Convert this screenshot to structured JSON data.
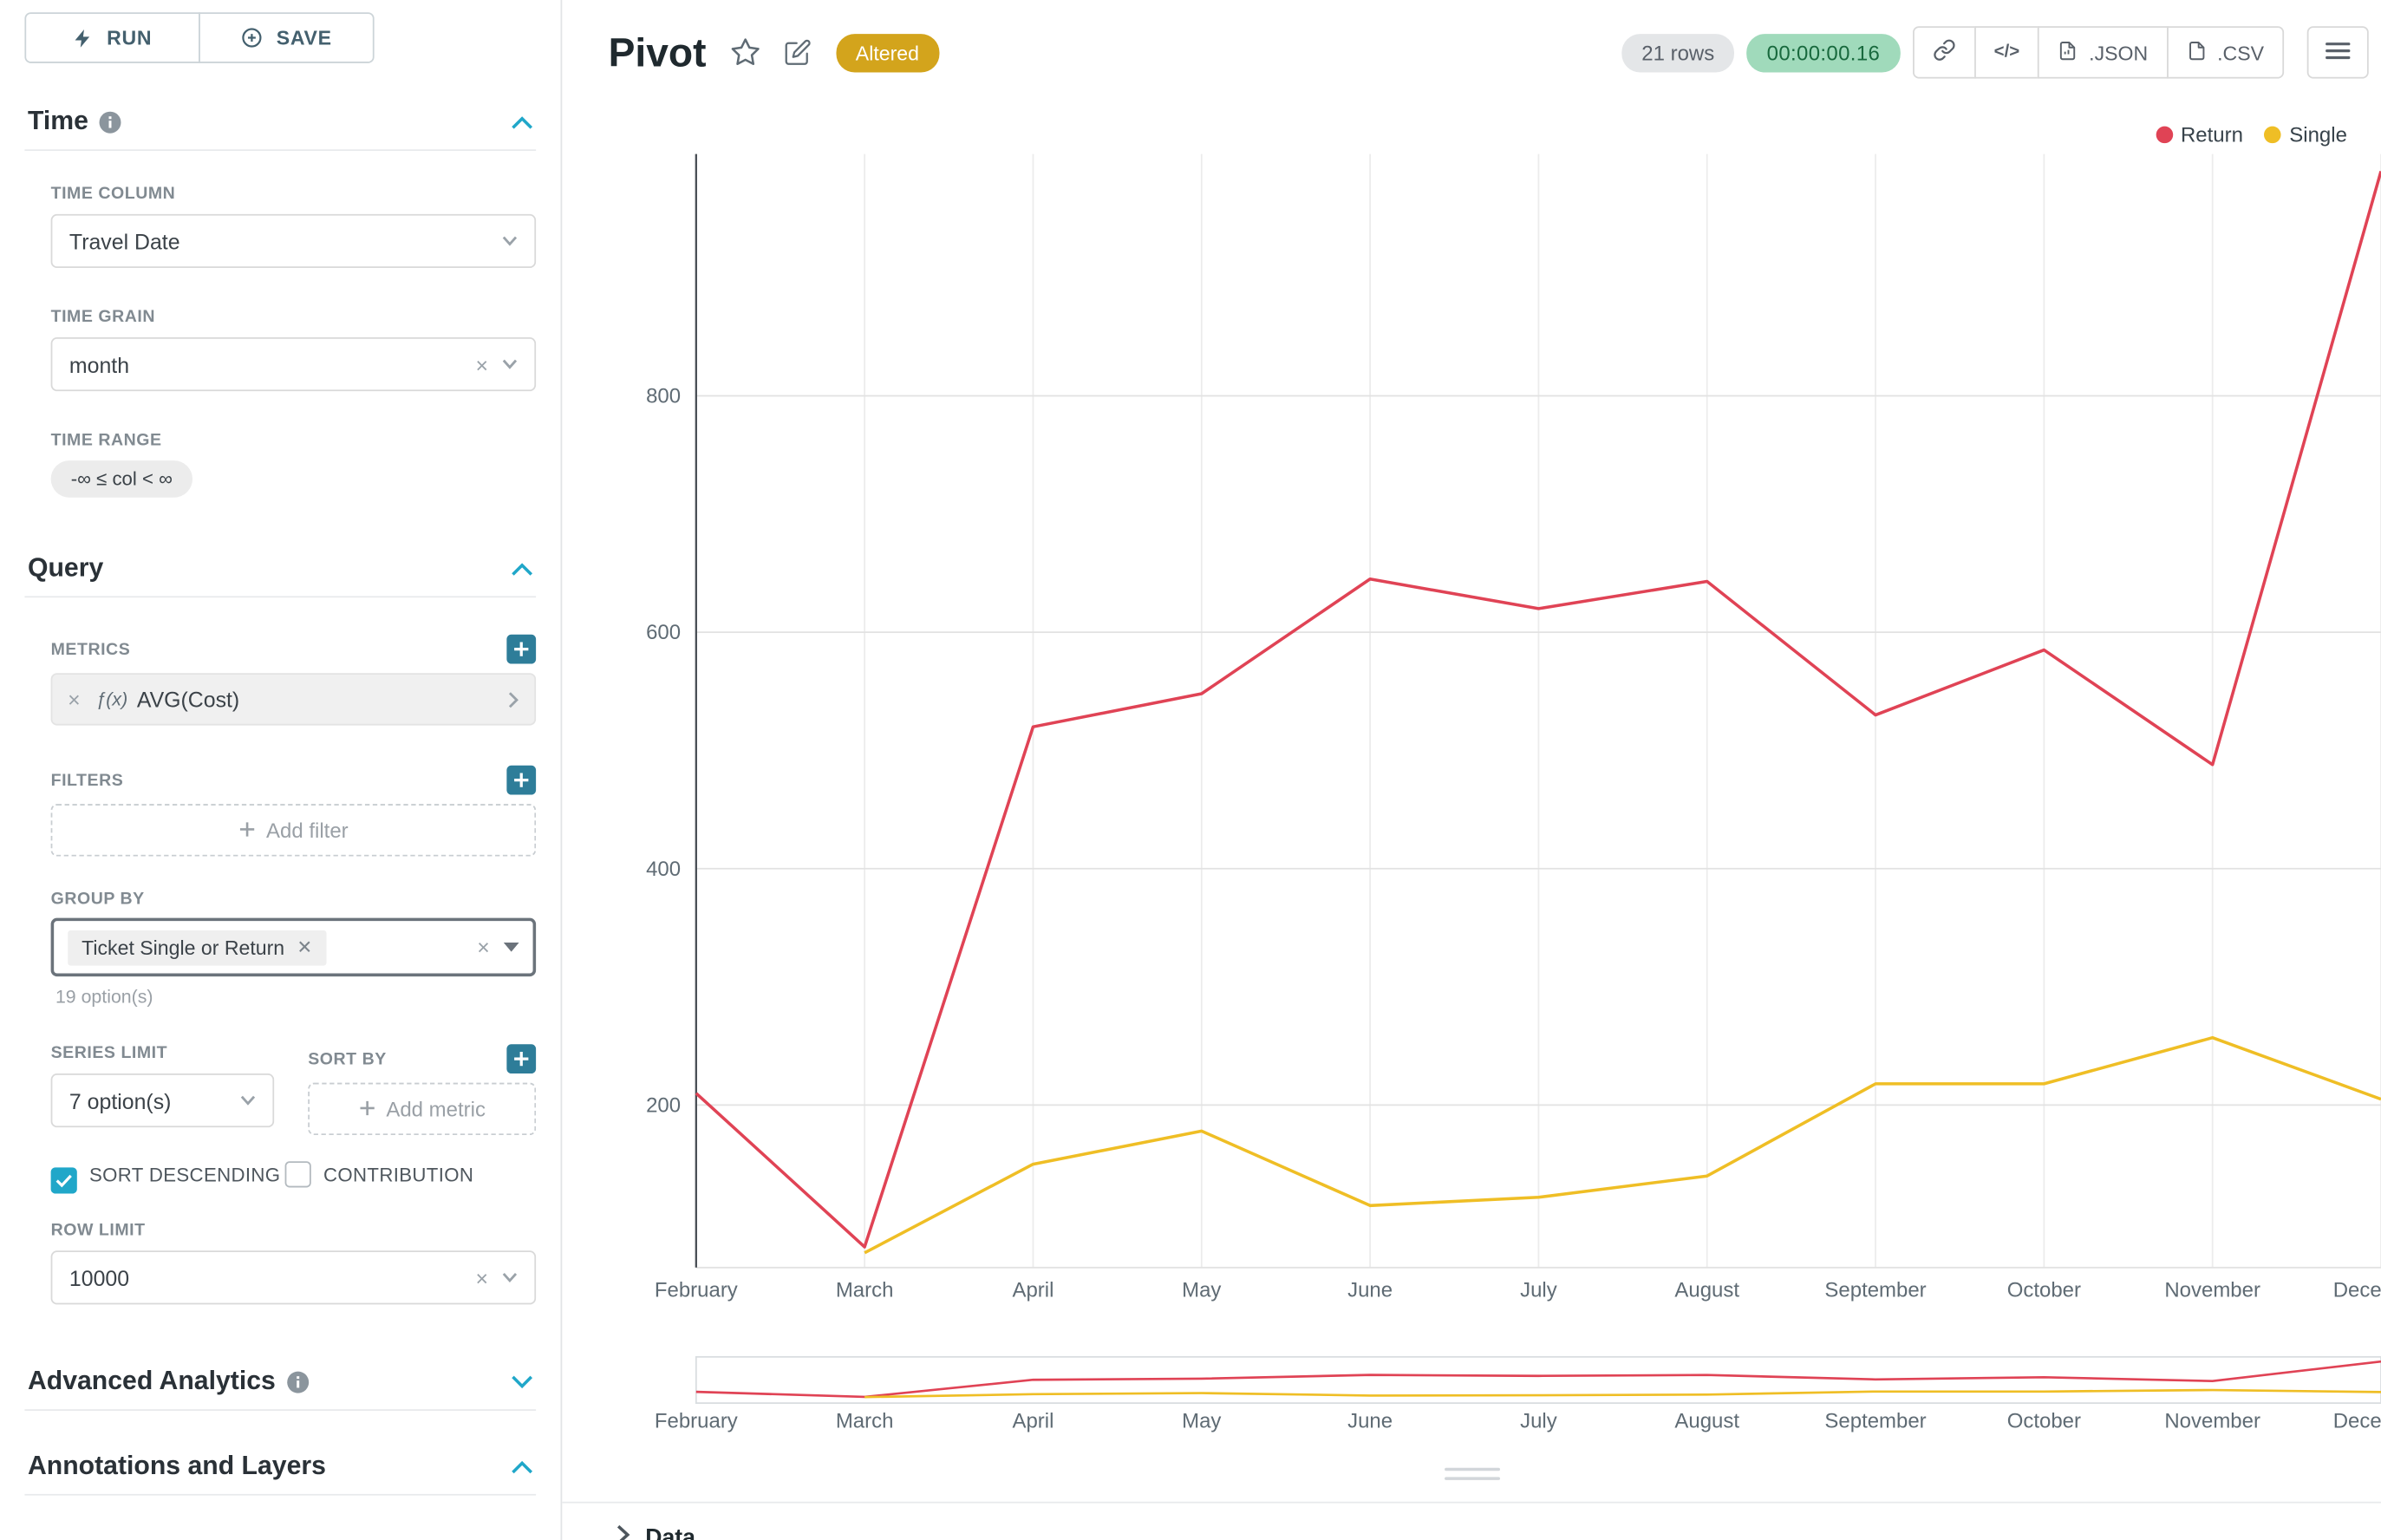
{
  "colors": {
    "accent": "#20a7c9",
    "return_series": "#e04355",
    "single_series": "#efbe25",
    "altered_badge": "#d3a41c",
    "timer_bg": "#a0dabb"
  },
  "toolbar": {
    "run": "RUN",
    "save": "SAVE"
  },
  "sidebar": {
    "time": {
      "title": "Time",
      "time_column_label": "TIME COLUMN",
      "time_column_value": "Travel Date",
      "time_grain_label": "TIME GRAIN",
      "time_grain_value": "month",
      "time_range_label": "TIME RANGE",
      "time_range_value": "-∞ ≤ col < ∞"
    },
    "query": {
      "title": "Query",
      "metrics_label": "METRICS",
      "metric_fx": "ƒ(x)",
      "metric_value": "AVG(Cost)",
      "filters_label": "FILTERS",
      "add_filter": "Add filter",
      "group_by_label": "GROUP BY",
      "group_by_tag": "Ticket Single or Return",
      "group_by_hint": "19 option(s)",
      "series_limit_label": "SERIES LIMIT",
      "series_limit_value": "7 option(s)",
      "sort_by_label": "SORT BY",
      "add_metric": "Add metric",
      "sort_descending_label": "SORT DESCENDING",
      "contribution_label": "CONTRIBUTION",
      "row_limit_label": "ROW LIMIT",
      "row_limit_value": "10000"
    },
    "advanced_title": "Advanced Analytics",
    "annotations_title": "Annotations and Layers"
  },
  "header": {
    "title": "Pivot",
    "altered_badge": "Altered",
    "row_count": "21 rows",
    "timer": "00:00:00.16",
    "code_glyph": "</>",
    "json_button": ".JSON",
    "csv_button": ".CSV"
  },
  "footer": {
    "data_label": "Data"
  },
  "chart_data": {
    "type": "line",
    "title": "Pivot",
    "xlabel": "",
    "ylabel": "",
    "x": [
      "February",
      "March",
      "April",
      "May",
      "June",
      "July",
      "August",
      "September",
      "October",
      "November",
      "December"
    ],
    "series": [
      {
        "name": "Return",
        "color": "#e04355",
        "values": [
          210,
          80,
          520,
          548,
          645,
          620,
          643,
          530,
          585,
          488,
          990
        ]
      },
      {
        "name": "Single",
        "color": "#efbe25",
        "values": [
          null,
          75,
          150,
          178,
          115,
          122,
          140,
          218,
          218,
          257,
          205
        ]
      }
    ],
    "yticks": [
      200,
      400,
      600,
      800
    ],
    "ylim": [
      0,
      1005
    ],
    "grid": true,
    "legend_position": "top-right",
    "has_mini_context_chart": true
  }
}
